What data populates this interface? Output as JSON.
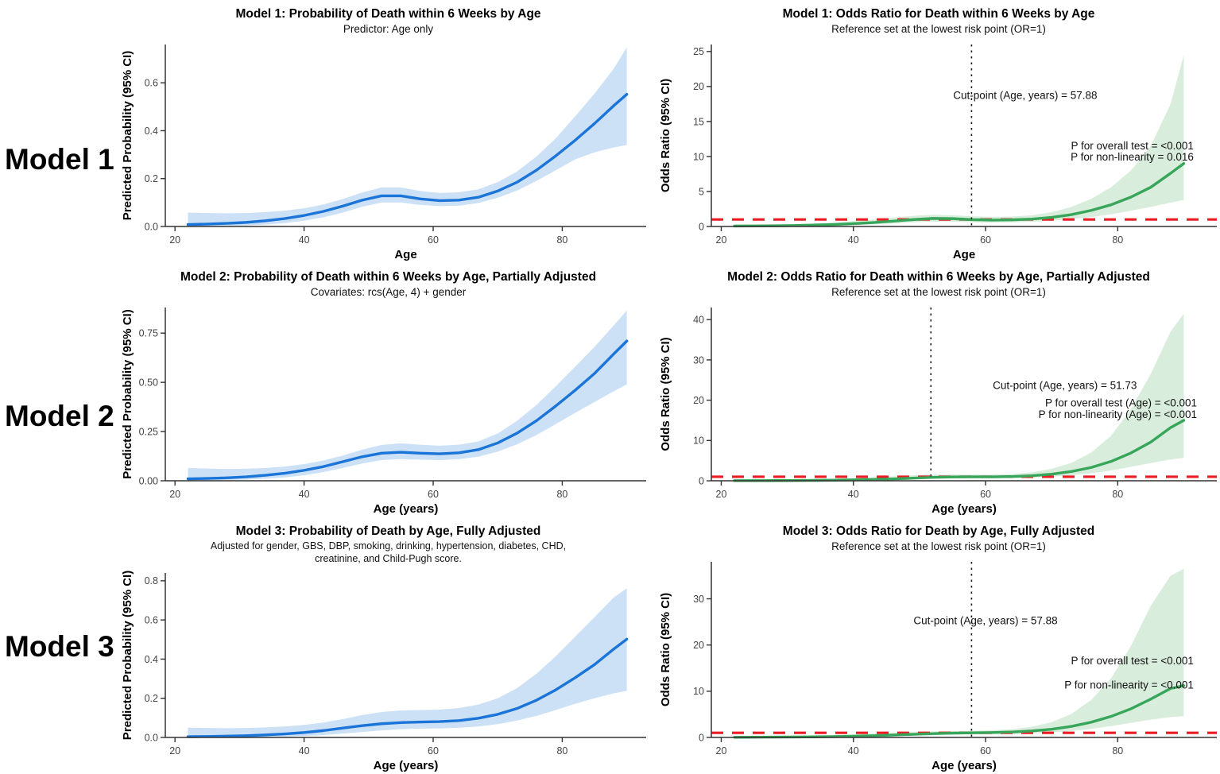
{
  "figure": {
    "background": "#ffffff"
  },
  "row_labels": [
    {
      "label": "Model 1"
    },
    {
      "label": "Model 2"
    },
    {
      "label": "Model 3"
    }
  ],
  "colors": {
    "probability_line": "#1b74d8",
    "probability_band": "#cce1f6",
    "odds_line": "#38a65a",
    "odds_band": "#d8eddc",
    "reference_line": "#ec1c24",
    "cutpoint_line": "#1a1a1a",
    "axis": "#333333",
    "tick_text": "#444444"
  },
  "chart_data": [
    {
      "id": "model1-probability",
      "type": "line",
      "title": "Model 1: Probability of Death within 6 Weeks by Age",
      "subtitle": "Predictor: Age only",
      "xlabel": "Age",
      "ylabel": "Predicted Probability (95% CI)",
      "xlim": [
        18.5,
        93
      ],
      "ylim": [
        0,
        0.76
      ],
      "xtick_values": [
        20,
        40,
        60,
        80
      ],
      "xtick_labels": [
        "20",
        "40",
        "60",
        "80"
      ],
      "ytick_values": [
        0,
        0.2,
        0.4,
        0.6
      ],
      "ytick_labels": [
        "0.0",
        "0.2",
        "0.4",
        "0.6"
      ],
      "line_color": "#1b74d8",
      "band_color": "#cce1f6",
      "x": [
        22,
        25,
        28,
        31,
        34,
        37,
        40,
        43,
        46,
        49,
        52,
        55,
        58,
        61,
        64,
        67,
        70,
        73,
        76,
        79,
        82,
        85,
        88,
        90
      ],
      "y": [
        0.008,
        0.01,
        0.013,
        0.017,
        0.024,
        0.033,
        0.046,
        0.063,
        0.085,
        0.11,
        0.128,
        0.128,
        0.115,
        0.108,
        0.11,
        0.122,
        0.148,
        0.185,
        0.235,
        0.295,
        0.36,
        0.43,
        0.505,
        0.552
      ],
      "lower": [
        0.0,
        0.001,
        0.002,
        0.004,
        0.008,
        0.014,
        0.024,
        0.038,
        0.058,
        0.082,
        0.1,
        0.1,
        0.09,
        0.085,
        0.087,
        0.098,
        0.12,
        0.15,
        0.19,
        0.235,
        0.28,
        0.31,
        0.33,
        0.34
      ],
      "upper": [
        0.058,
        0.056,
        0.055,
        0.056,
        0.06,
        0.066,
        0.076,
        0.092,
        0.115,
        0.142,
        0.163,
        0.163,
        0.148,
        0.14,
        0.143,
        0.155,
        0.185,
        0.23,
        0.292,
        0.368,
        0.46,
        0.555,
        0.66,
        0.748
      ],
      "annotations": []
    },
    {
      "id": "model1-odds-ratio",
      "type": "line",
      "title": "Model 1: Odds Ratio for Death within 6 Weeks by Age",
      "subtitle": "Reference set at the lowest risk point (OR=1)",
      "xlabel": "Age",
      "ylabel": "Odds Ratio (95% CI)",
      "xlim": [
        18.5,
        95
      ],
      "ylim": [
        0,
        26
      ],
      "xtick_values": [
        20,
        40,
        60,
        80
      ],
      "xtick_labels": [
        "20",
        "40",
        "60",
        "80"
      ],
      "ytick_values": [
        0,
        5,
        10,
        15,
        20,
        25
      ],
      "ytick_labels": [
        "0",
        "5",
        "10",
        "15",
        "20",
        "25"
      ],
      "line_color": "#38a65a",
      "band_color": "#d8eddc",
      "refline": 1,
      "refline_color": "#ec1c24",
      "vline": 57.88,
      "vline_color": "#1a1a1a",
      "x": [
        22,
        25,
        28,
        31,
        34,
        37,
        40,
        43,
        46,
        49,
        52,
        55,
        58,
        61,
        64,
        67,
        70,
        73,
        76,
        79,
        82,
        85,
        88,
        90
      ],
      "y": [
        0.06,
        0.08,
        0.1,
        0.14,
        0.2,
        0.28,
        0.4,
        0.56,
        0.76,
        0.98,
        1.15,
        1.12,
        0.98,
        0.92,
        0.95,
        1.06,
        1.3,
        1.7,
        2.3,
        3.1,
        4.2,
        5.6,
        7.6,
        9.0
      ],
      "lower": [
        0.02,
        0.03,
        0.04,
        0.06,
        0.09,
        0.13,
        0.2,
        0.3,
        0.43,
        0.58,
        0.7,
        0.68,
        0.6,
        0.56,
        0.58,
        0.66,
        0.82,
        1.05,
        1.35,
        1.75,
        2.25,
        2.8,
        3.4,
        3.8
      ],
      "upper": [
        0.16,
        0.19,
        0.24,
        0.31,
        0.42,
        0.57,
        0.77,
        1.0,
        1.28,
        1.52,
        1.68,
        1.62,
        1.45,
        1.38,
        1.42,
        1.6,
        2.05,
        2.8,
        3.95,
        5.6,
        8.0,
        11.5,
        17.5,
        24.5
      ],
      "annotations": [
        {
          "text": "Cut-point (Age, years) = 57.88",
          "x": 66,
          "y": 18.2,
          "anchor": "middle"
        },
        {
          "text": "P for overall test = <0.001",
          "x": 91.5,
          "y": 11.0,
          "anchor": "end"
        },
        {
          "text": "P for non-linearity = 0.016",
          "x": 91.5,
          "y": 9.4,
          "anchor": "end"
        }
      ]
    },
    {
      "id": "model2-probability",
      "type": "line",
      "title": "Model 2: Probability of Death within 6 Weeks by Age, Partially Adjusted",
      "subtitle": "Covariates: rcs(Age, 4) + gender",
      "xlabel": "Age (years)",
      "ylabel": "Predicted Probability (95% CI)",
      "xlim": [
        18.5,
        93
      ],
      "ylim": [
        0,
        0.88
      ],
      "xtick_values": [
        20,
        40,
        60,
        80
      ],
      "xtick_labels": [
        "20",
        "40",
        "60",
        "80"
      ],
      "ytick_values": [
        0,
        0.25,
        0.5,
        0.75
      ],
      "ytick_labels": [
        "0.00",
        "0.25",
        "0.50",
        "0.75"
      ],
      "line_color": "#1b74d8",
      "band_color": "#cce1f6",
      "x": [
        22,
        25,
        28,
        31,
        34,
        37,
        40,
        43,
        46,
        49,
        52,
        55,
        58,
        61,
        64,
        67,
        70,
        73,
        76,
        79,
        82,
        85,
        88,
        90
      ],
      "y": [
        0.01,
        0.012,
        0.015,
        0.02,
        0.028,
        0.038,
        0.053,
        0.072,
        0.097,
        0.122,
        0.14,
        0.145,
        0.14,
        0.137,
        0.142,
        0.158,
        0.192,
        0.242,
        0.305,
        0.38,
        0.46,
        0.545,
        0.645,
        0.71
      ],
      "lower": [
        0.001,
        0.002,
        0.004,
        0.006,
        0.01,
        0.017,
        0.028,
        0.044,
        0.065,
        0.088,
        0.105,
        0.11,
        0.107,
        0.105,
        0.11,
        0.122,
        0.148,
        0.185,
        0.232,
        0.288,
        0.345,
        0.4,
        0.455,
        0.49
      ],
      "upper": [
        0.065,
        0.062,
        0.06,
        0.061,
        0.065,
        0.072,
        0.085,
        0.103,
        0.128,
        0.158,
        0.182,
        0.19,
        0.183,
        0.178,
        0.183,
        0.2,
        0.24,
        0.305,
        0.385,
        0.48,
        0.58,
        0.68,
        0.79,
        0.865
      ],
      "annotations": []
    },
    {
      "id": "model2-odds-ratio",
      "type": "line",
      "title": "Model 2: Odds Ratio for Death within 6 Weeks by Age, Partially Adjusted",
      "subtitle": "Reference set at the lowest risk point (OR=1)",
      "xlabel": "Age (years)",
      "ylabel": "Odds Ratio (95% CI)",
      "xlim": [
        18.5,
        95
      ],
      "ylim": [
        0,
        43
      ],
      "xtick_values": [
        20,
        40,
        60,
        80
      ],
      "xtick_labels": [
        "20",
        "40",
        "60",
        "80"
      ],
      "ytick_values": [
        0,
        10,
        20,
        30,
        40
      ],
      "ytick_labels": [
        "0",
        "10",
        "20",
        "30",
        "40"
      ],
      "line_color": "#38a65a",
      "band_color": "#d8eddc",
      "refline": 1,
      "refline_color": "#ec1c24",
      "vline": 51.73,
      "vline_color": "#1a1a1a",
      "x": [
        22,
        25,
        28,
        31,
        34,
        37,
        40,
        43,
        46,
        49,
        52,
        55,
        58,
        61,
        64,
        67,
        70,
        73,
        76,
        79,
        82,
        85,
        88,
        90
      ],
      "y": [
        0.03,
        0.04,
        0.05,
        0.07,
        0.1,
        0.15,
        0.22,
        0.32,
        0.46,
        0.65,
        0.85,
        0.95,
        0.97,
        0.98,
        1.05,
        1.25,
        1.65,
        2.3,
        3.3,
        4.8,
        6.9,
        9.6,
        13.2,
        15.0
      ],
      "lower": [
        0.01,
        0.01,
        0.02,
        0.03,
        0.04,
        0.06,
        0.1,
        0.15,
        0.23,
        0.35,
        0.5,
        0.6,
        0.63,
        0.64,
        0.68,
        0.8,
        1.02,
        1.35,
        1.85,
        2.55,
        3.45,
        4.4,
        5.3,
        5.7
      ],
      "upper": [
        0.12,
        0.15,
        0.18,
        0.24,
        0.32,
        0.44,
        0.61,
        0.84,
        1.1,
        1.35,
        1.52,
        1.58,
        1.55,
        1.55,
        1.68,
        2.1,
        2.95,
        4.45,
        7.0,
        11.2,
        17.8,
        26.5,
        37.0,
        41.5
      ],
      "annotations": [
        {
          "text": "Cut-point (Age, years) = 51.73",
          "x": 72,
          "y": 22.8,
          "anchor": "middle"
        },
        {
          "text": "P for overall test (Age) = <0.001",
          "x": 92,
          "y": 18.4,
          "anchor": "end"
        },
        {
          "text": "P for non-linearity (Age) = <0.001",
          "x": 92,
          "y": 15.6,
          "anchor": "end"
        }
      ]
    },
    {
      "id": "model3-probability",
      "type": "line",
      "title": "Model 3: Probability of Death by Age, Fully Adjusted",
      "subtitle": "Adjusted for gender, GBS, DBP, smoking, drinking, hypertension, diabetes, CHD,",
      "subtitle2": "creatinine, and Child-Pugh score.",
      "xlabel": "Age (years)",
      "ylabel": "Predicted Probability (95% CI)",
      "xlim": [
        18.5,
        93
      ],
      "ylim": [
        0,
        0.84
      ],
      "xtick_values": [
        20,
        40,
        60,
        80
      ],
      "xtick_labels": [
        "20",
        "40",
        "60",
        "80"
      ],
      "ytick_values": [
        0,
        0.2,
        0.4,
        0.6,
        0.8
      ],
      "ytick_labels": [
        "0.0",
        "0.2",
        "0.4",
        "0.6",
        "0.8"
      ],
      "line_color": "#1b74d8",
      "band_color": "#cce1f6",
      "x": [
        22,
        25,
        28,
        31,
        34,
        37,
        40,
        43,
        46,
        49,
        52,
        55,
        58,
        61,
        64,
        67,
        70,
        73,
        76,
        79,
        82,
        85,
        88,
        90
      ],
      "y": [
        0.004,
        0.005,
        0.007,
        0.009,
        0.013,
        0.018,
        0.025,
        0.035,
        0.048,
        0.06,
        0.07,
        0.076,
        0.079,
        0.081,
        0.086,
        0.098,
        0.118,
        0.148,
        0.19,
        0.243,
        0.305,
        0.372,
        0.452,
        0.502
      ],
      "lower": [
        0.0,
        0.0,
        0.001,
        0.001,
        0.002,
        0.004,
        0.007,
        0.012,
        0.02,
        0.028,
        0.036,
        0.042,
        0.045,
        0.046,
        0.049,
        0.056,
        0.068,
        0.086,
        0.11,
        0.14,
        0.172,
        0.2,
        0.225,
        0.238
      ],
      "upper": [
        0.05,
        0.048,
        0.047,
        0.048,
        0.051,
        0.056,
        0.064,
        0.076,
        0.094,
        0.114,
        0.13,
        0.138,
        0.14,
        0.142,
        0.15,
        0.168,
        0.2,
        0.252,
        0.325,
        0.415,
        0.515,
        0.615,
        0.715,
        0.762
      ],
      "annotations": []
    },
    {
      "id": "model3-odds-ratio",
      "type": "line",
      "title": "Model 3: Odds Ratio for Death by Age, Fully Adjusted",
      "subtitle": "Reference set at the lowest risk point (OR=1)",
      "xlabel": "Age (years)",
      "ylabel": "Odds Ratio (95% CI)",
      "xlim": [
        18.5,
        95
      ],
      "ylim": [
        0,
        38
      ],
      "xtick_values": [
        20,
        40,
        60,
        80
      ],
      "xtick_labels": [
        "20",
        "40",
        "60",
        "80"
      ],
      "ytick_values": [
        0,
        10,
        20,
        30
      ],
      "ytick_labels": [
        "0",
        "10",
        "20",
        "30"
      ],
      "line_color": "#38a65a",
      "band_color": "#d8eddc",
      "refline": 1,
      "refline_color": "#ec1c24",
      "vline": 57.88,
      "vline_color": "#1a1a1a",
      "x": [
        22,
        25,
        28,
        31,
        34,
        37,
        40,
        43,
        46,
        49,
        52,
        55,
        58,
        61,
        64,
        67,
        70,
        73,
        76,
        79,
        82,
        85,
        88,
        90
      ],
      "y": [
        0.04,
        0.05,
        0.07,
        0.09,
        0.13,
        0.19,
        0.27,
        0.38,
        0.52,
        0.68,
        0.83,
        0.93,
        1.0,
        1.07,
        1.18,
        1.4,
        1.78,
        2.4,
        3.3,
        4.55,
        6.2,
        8.3,
        10.6,
        11.2
      ],
      "lower": [
        0.01,
        0.02,
        0.02,
        0.03,
        0.05,
        0.08,
        0.12,
        0.18,
        0.27,
        0.38,
        0.5,
        0.6,
        0.66,
        0.7,
        0.76,
        0.88,
        1.08,
        1.4,
        1.85,
        2.45,
        3.15,
        3.85,
        4.4,
        4.6
      ],
      "upper": [
        0.14,
        0.17,
        0.21,
        0.27,
        0.36,
        0.48,
        0.64,
        0.83,
        1.02,
        1.18,
        1.3,
        1.38,
        1.45,
        1.55,
        1.78,
        2.3,
        3.3,
        5.1,
        8.1,
        12.8,
        19.8,
        28.5,
        35.0,
        36.5
      ],
      "annotations": [
        {
          "text": "Cut-point (Age, years) = 57.88",
          "x": 60,
          "y": 24.5,
          "anchor": "middle"
        },
        {
          "text": "P for overall test = <0.001",
          "x": 91.5,
          "y": 15.8,
          "anchor": "end"
        },
        {
          "text": "P for non-linearity = <0.001",
          "x": 91.5,
          "y": 10.6,
          "anchor": "end"
        }
      ]
    }
  ]
}
